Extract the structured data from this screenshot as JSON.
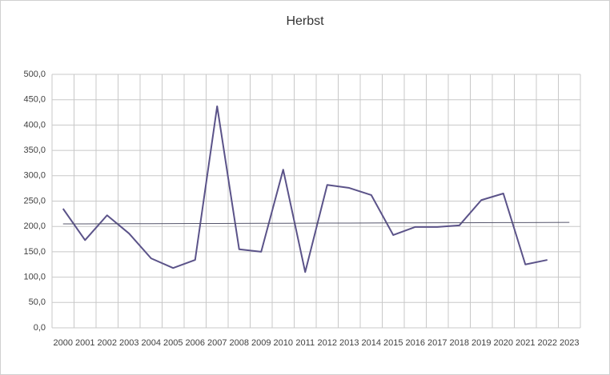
{
  "chart_data": {
    "type": "line",
    "title": "Herbst",
    "categories": [
      "2000",
      "2001",
      "2002",
      "2003",
      "2004",
      "2005",
      "2006",
      "2007",
      "2008",
      "2009",
      "2010",
      "2011",
      "2012",
      "2013",
      "2014",
      "2015",
      "2016",
      "2017",
      "2018",
      "2019",
      "2020",
      "2021",
      "2022",
      "2023"
    ],
    "series": [
      {
        "color": "#5b5389",
        "values": [
          235,
          173,
          222,
          186,
          137,
          118,
          134,
          437,
          155,
          150,
          312,
          110,
          282,
          276,
          262,
          183,
          199,
          199,
          202,
          252,
          265,
          125,
          134,
          null
        ]
      },
      {
        "color": "#55556b",
        "values": [
          205,
          205.1,
          205.3,
          205.4,
          205.5,
          205.7,
          205.8,
          205.9,
          206,
          206.2,
          206.3,
          206.4,
          206.6,
          206.7,
          206.8,
          207,
          207.1,
          207.2,
          207.3,
          207.5,
          207.6,
          207.7,
          207.9,
          208
        ]
      }
    ],
    "ylim": [
      0,
      500
    ],
    "yticks": [
      {
        "value": 0,
        "label": "0,0"
      },
      {
        "value": 50,
        "label": "50,0"
      },
      {
        "value": 100,
        "label": "100,0"
      },
      {
        "value": 150,
        "label": "150,0"
      },
      {
        "value": 200,
        "label": "200,0"
      },
      {
        "value": 250,
        "label": "250,0"
      },
      {
        "value": 300,
        "label": "300,0"
      },
      {
        "value": 350,
        "label": "350,0"
      },
      {
        "value": 400,
        "label": "400,0"
      },
      {
        "value": 450,
        "label": "450,0"
      },
      {
        "value": 500,
        "label": "500,0"
      }
    ],
    "grid": true
  }
}
